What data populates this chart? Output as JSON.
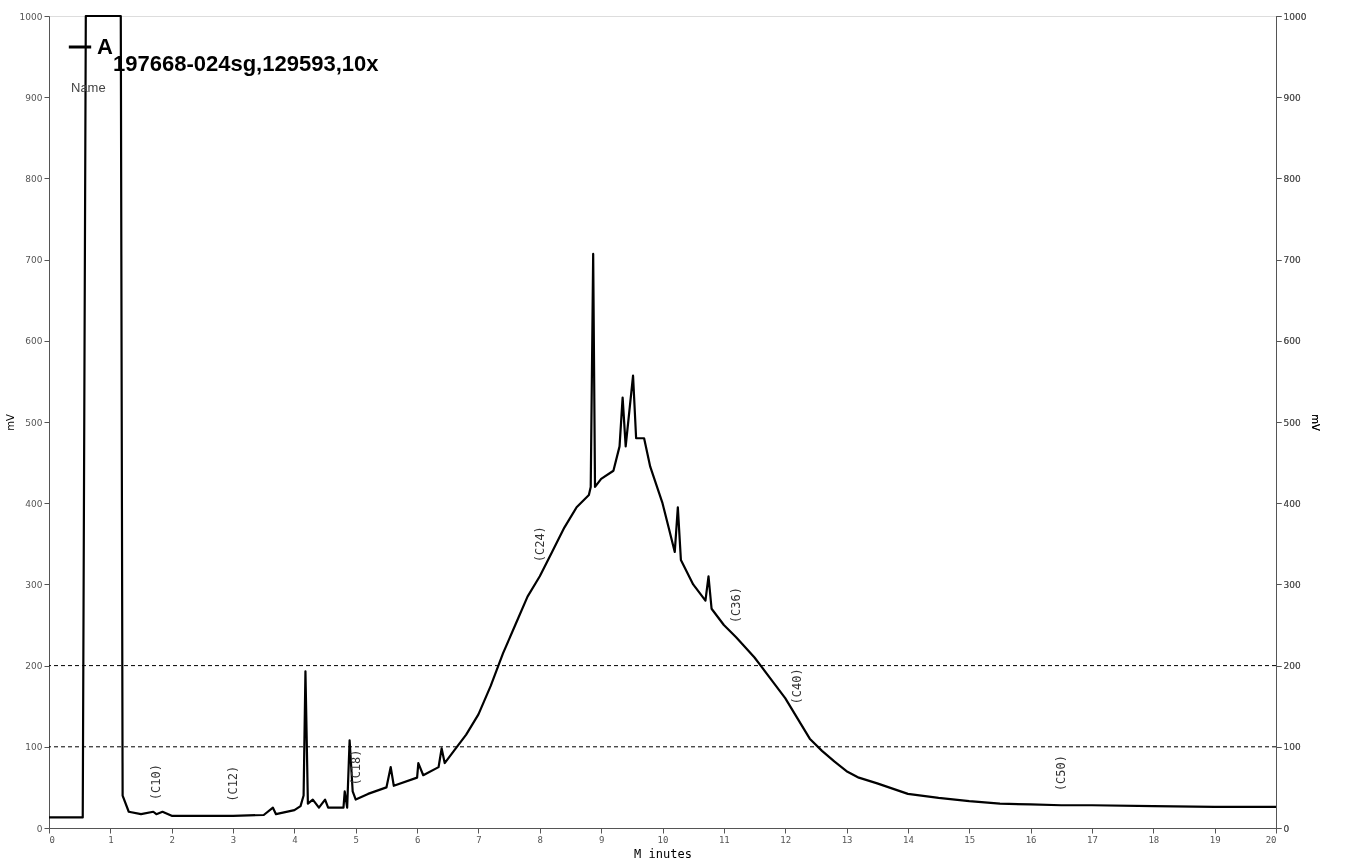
{
  "chart_data": {
    "type": "line",
    "title": "197668-024sg,129593,10x",
    "xlabel": "M inutes",
    "ylabel": "mV",
    "y2label": "mV",
    "xlim": [
      0,
      20
    ],
    "xticks": [
      0,
      1,
      2,
      3,
      4,
      5,
      6,
      7,
      8,
      9,
      10,
      11,
      12,
      13,
      14,
      15,
      16,
      17,
      18,
      19,
      20
    ],
    "ylim": [
      0,
      1000
    ],
    "yticks": [
      0,
      100,
      200,
      300,
      400,
      500,
      600,
      700,
      800,
      900,
      1000
    ],
    "y2lim": [
      0,
      1000
    ],
    "y2ticks": [
      0,
      100,
      200,
      300,
      400,
      500,
      600,
      700,
      800,
      900,
      1000
    ],
    "grid": false,
    "legend": "top left",
    "marker": "none",
    "line_style": "solid",
    "series": [
      {
        "name": "A",
        "color": "#000000",
        "x": [
          0,
          0.55,
          0.6,
          0.62,
          1.15,
          1.17,
          1.2,
          1.3,
          1.5,
          1.7,
          1.75,
          1.85,
          2.0,
          3.0,
          3.5,
          3.65,
          3.7,
          4.0,
          4.1,
          4.15,
          4.18,
          4.22,
          4.3,
          4.4,
          4.5,
          4.55,
          4.8,
          4.82,
          4.86,
          4.9,
          4.95,
          5.0,
          5.2,
          5.5,
          5.57,
          5.62,
          6.0,
          6.02,
          6.1,
          6.35,
          6.4,
          6.45,
          6.6,
          6.8,
          7.0,
          7.2,
          7.4,
          7.6,
          7.8,
          8.0,
          8.2,
          8.4,
          8.6,
          8.8,
          8.83,
          8.87,
          8.9,
          9.0,
          9.2,
          9.3,
          9.35,
          9.4,
          9.52,
          9.57,
          9.7,
          9.8,
          10.0,
          10.1,
          10.2,
          10.25,
          10.3,
          10.5,
          10.7,
          10.75,
          10.8,
          11.0,
          11.2,
          11.5,
          11.8,
          12.0,
          12.2,
          12.4,
          12.6,
          12.8,
          13.0,
          13.2,
          13.5,
          14.0,
          14.5,
          15.0,
          15.5,
          16.0,
          16.5,
          17.0,
          18.0,
          19.0,
          20.0
        ],
        "values": [
          13,
          13,
          1000,
          1000,
          1000,
          1000,
          40,
          20,
          17,
          20,
          17,
          20,
          15,
          15,
          16,
          25,
          17,
          22,
          27,
          40,
          193,
          30,
          35,
          25,
          35,
          25,
          25,
          45,
          25,
          108,
          45,
          35,
          42,
          50,
          75,
          52,
          62,
          80,
          65,
          75,
          98,
          80,
          95,
          115,
          140,
          175,
          215,
          250,
          285,
          310,
          340,
          370,
          395,
          410,
          420,
          707,
          420,
          430,
          440,
          470,
          530,
          470,
          557,
          480,
          480,
          445,
          400,
          370,
          340,
          395,
          330,
          300,
          280,
          310,
          270,
          250,
          235,
          210,
          180,
          160,
          135,
          110,
          95,
          82,
          70,
          62,
          55,
          42,
          37,
          33,
          30,
          29,
          28,
          28,
          27,
          26,
          26
        ]
      }
    ],
    "ref_lines": [
      {
        "axis": "y2",
        "value": 100,
        "line_style": "dashed",
        "color": "#000000"
      },
      {
        "axis": "y2",
        "value": 200,
        "line_style": "dashed",
        "color": "#000000"
      }
    ],
    "annotations": [
      "Name",
      {
        "text": "(C10)",
        "x": 1.75,
        "y": 17
      },
      {
        "text": "(C12)",
        "x": 3.0,
        "y": 15
      },
      {
        "text": "(C18)",
        "x": 5.0,
        "y": 35
      },
      {
        "text": "(C24)",
        "x": 8.0,
        "y": 310
      },
      {
        "text": "(C36)",
        "x": 11.2,
        "y": 235
      },
      {
        "text": "(C40)",
        "x": 12.2,
        "y": 135
      },
      {
        "text": "(C50)",
        "x": 16.5,
        "y": 28
      }
    ]
  }
}
